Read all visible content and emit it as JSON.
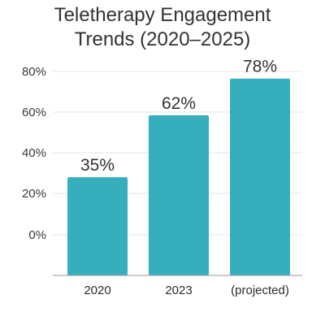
{
  "chart_data": {
    "type": "bar",
    "title_lines": [
      "Teletherapy Engagement",
      "Trends (2020–2025)"
    ],
    "categories": [
      "2020",
      "2023",
      "(projected)"
    ],
    "values": [
      35,
      62,
      78
    ],
    "data_labels": [
      "35%",
      "62%",
      "78%"
    ],
    "y_ticks": [
      "80%",
      "60%",
      "40%",
      "20%",
      "0%"
    ],
    "xlabel": "",
    "ylabel": "",
    "grid": true,
    "legend": "none",
    "bar_color": "#36aebc"
  }
}
